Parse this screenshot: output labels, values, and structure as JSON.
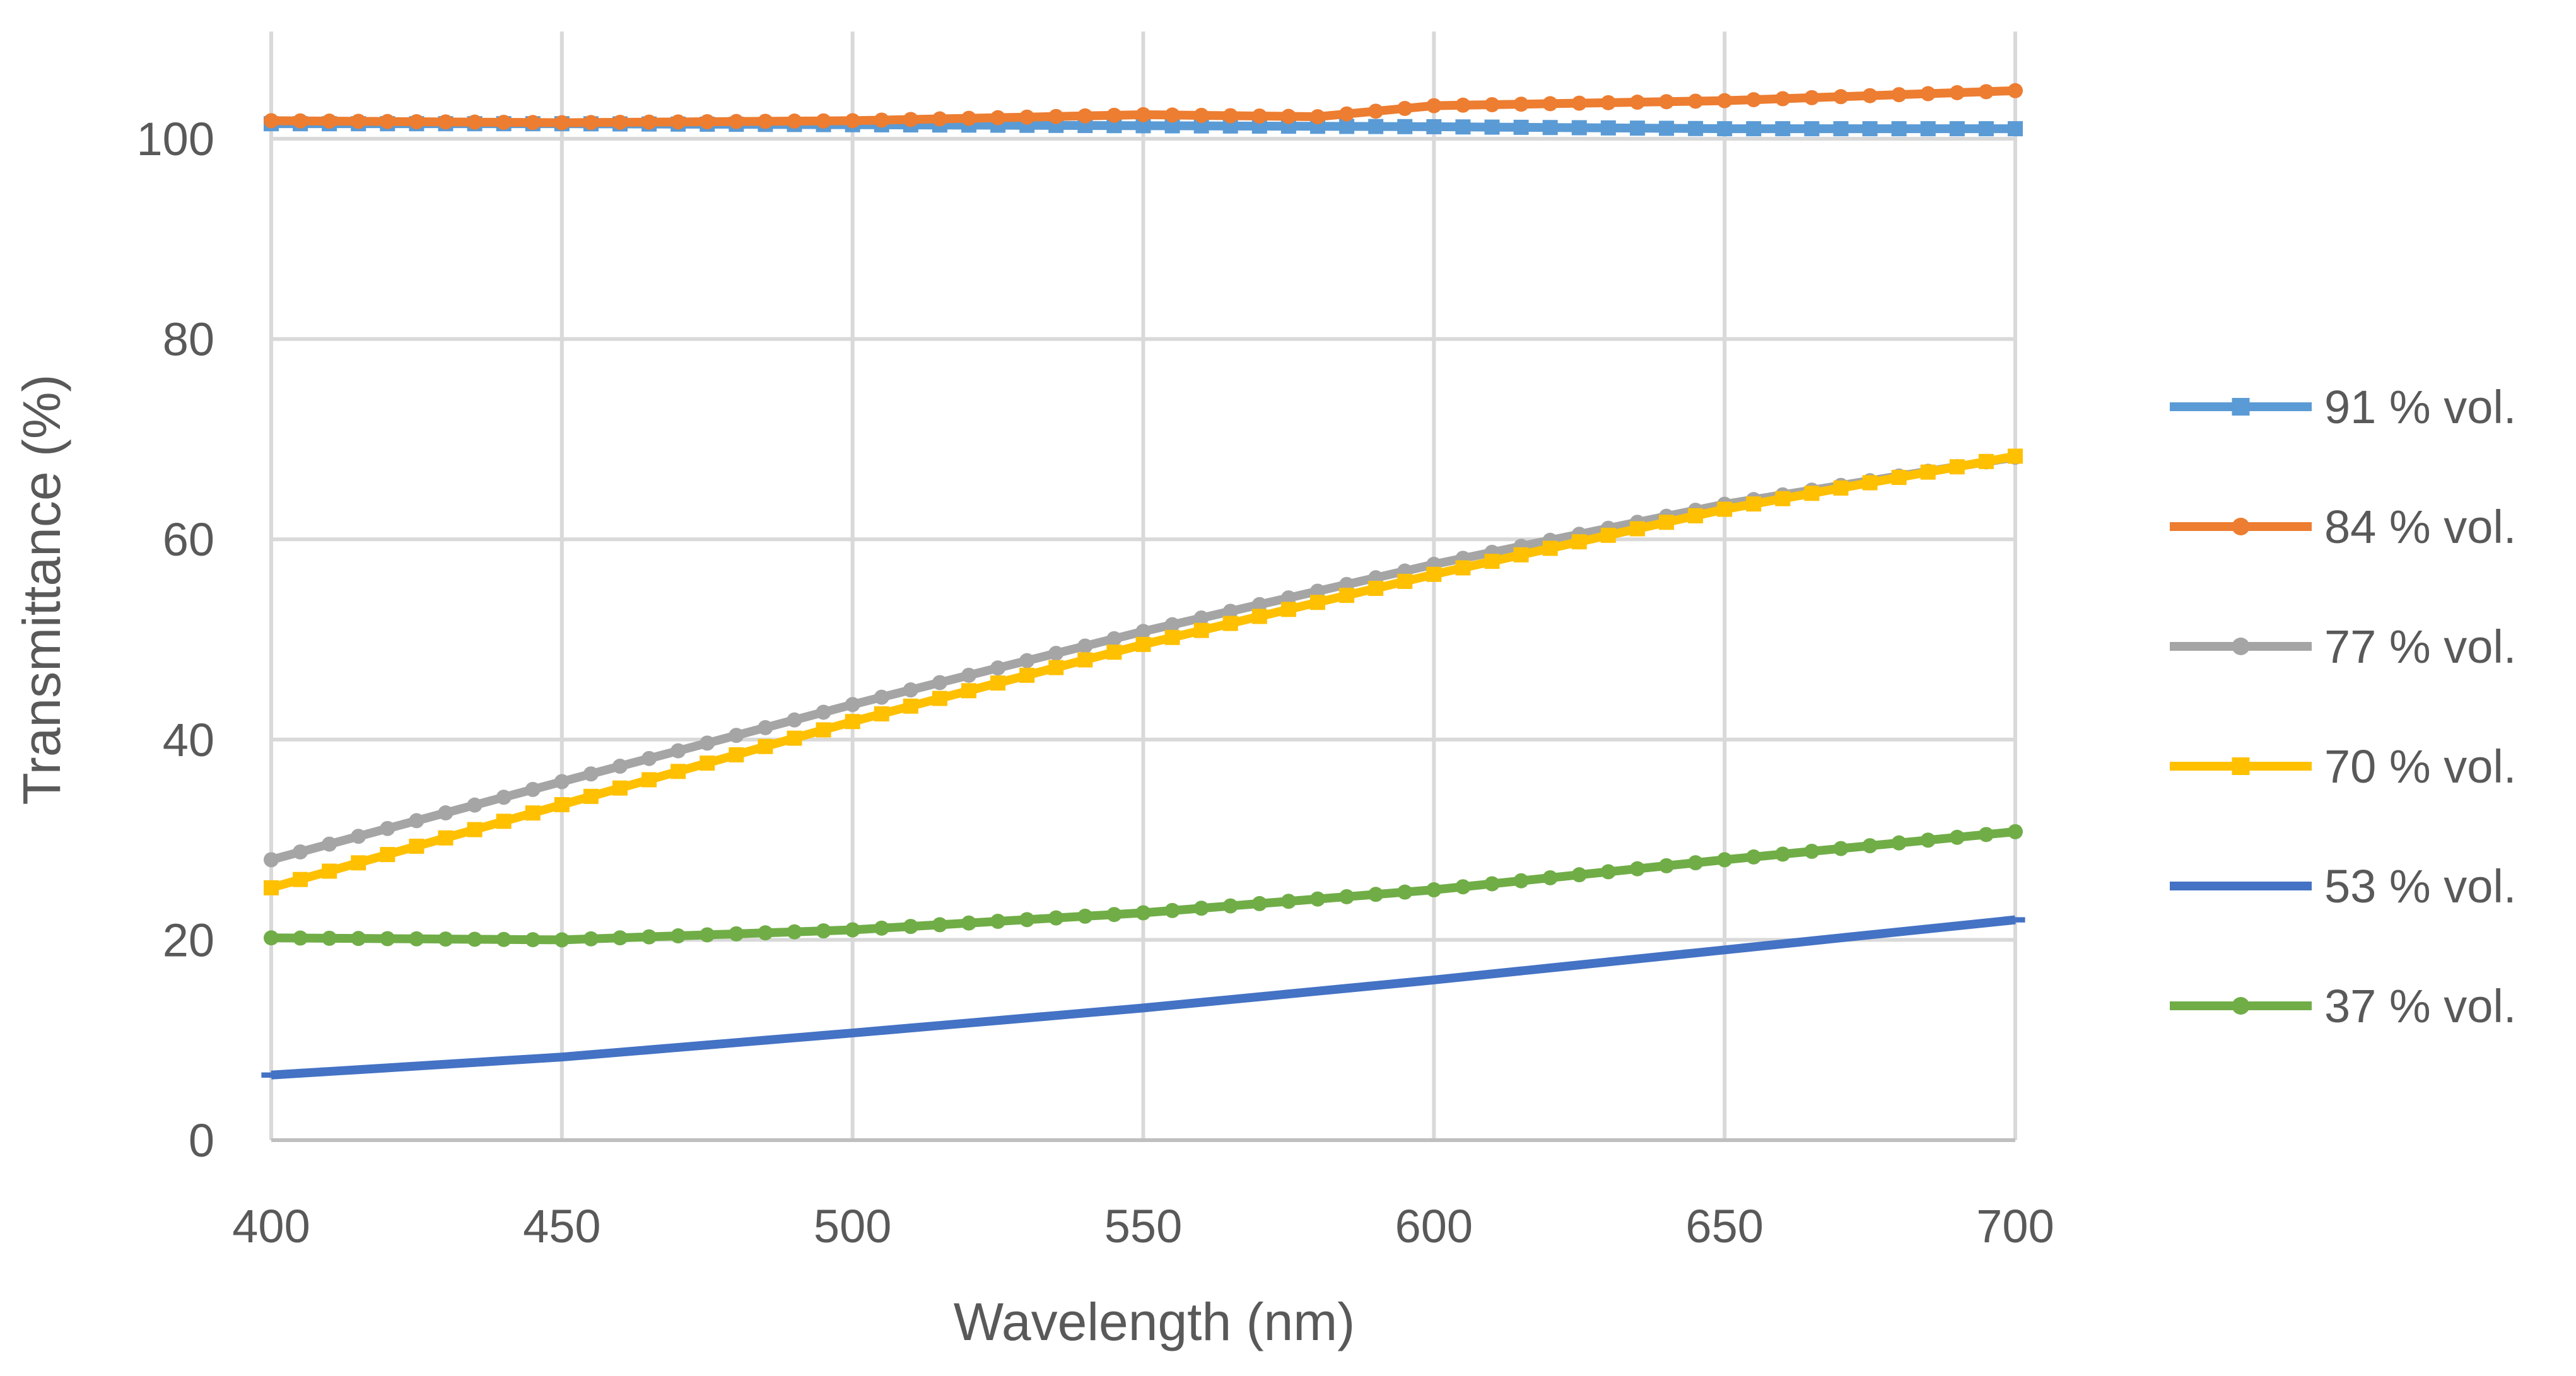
{
  "chart_data": {
    "type": "line",
    "title": "",
    "xlabel": "Wavelength (nm)",
    "ylabel": "Transmittance (%)",
    "xlim": [
      400,
      700
    ],
    "ylim": [
      0,
      110
    ],
    "x_ticks": [
      400,
      450,
      500,
      550,
      600,
      650,
      700
    ],
    "y_ticks": [
      0,
      20,
      40,
      60,
      80,
      100
    ],
    "grid": true,
    "legend_position": "right",
    "x_step": 5,
    "series": [
      {
        "name": "91 % vol.",
        "color": "#5B9BD5",
        "marker": "square",
        "x": [
          400,
          450,
          500,
          550,
          600,
          650,
          700
        ],
        "y": [
          101.5,
          101.5,
          101.4,
          101.3,
          101.2,
          101.0,
          101.0
        ]
      },
      {
        "name": "84 % vol.",
        "color": "#ED7D31",
        "marker": "circle",
        "x": [
          400,
          450,
          500,
          550,
          580,
          600,
          650,
          700
        ],
        "y": [
          101.8,
          101.6,
          101.8,
          102.4,
          102.2,
          103.3,
          103.8,
          104.8
        ]
      },
      {
        "name": "77 % vol.",
        "color": "#A5A5A5",
        "marker": "circle",
        "x": [
          400,
          450,
          500,
          550,
          600,
          650,
          700
        ],
        "y": [
          28.0,
          35.8,
          43.5,
          50.8,
          57.5,
          63.5,
          68.2
        ]
      },
      {
        "name": "70 % vol.",
        "color": "#FFC000",
        "marker": "square",
        "x": [
          400,
          450,
          500,
          550,
          600,
          650,
          700
        ],
        "y": [
          25.2,
          33.5,
          41.8,
          49.5,
          56.5,
          63.0,
          68.3
        ]
      },
      {
        "name": "53 % vol.",
        "color": "#4472C4",
        "marker": "dash",
        "x": [
          400,
          450,
          500,
          550,
          600,
          650,
          700
        ],
        "y": [
          6.5,
          8.3,
          10.7,
          13.2,
          16.0,
          19.0,
          22.0
        ]
      },
      {
        "name": "37 % vol.",
        "color": "#70AD47",
        "marker": "circle",
        "x": [
          400,
          450,
          500,
          550,
          600,
          650,
          700
        ],
        "y": [
          20.2,
          20.0,
          21.0,
          22.7,
          25.0,
          28.0,
          30.8
        ]
      }
    ]
  }
}
